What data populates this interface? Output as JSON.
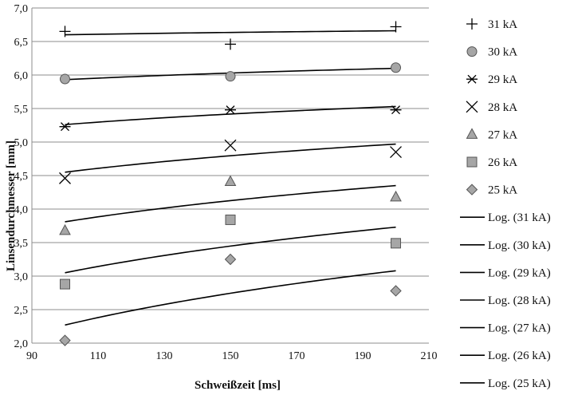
{
  "chart_data": {
    "type": "scatter",
    "xlabel": "Schweißzeit [ms]",
    "ylabel": "Linsendurchmesser [mm]",
    "xlim": [
      90,
      210
    ],
    "ylim": [
      2.0,
      7.0
    ],
    "xticks": [
      90,
      110,
      130,
      150,
      170,
      190,
      210
    ],
    "yticks": [
      2.0,
      2.5,
      3.0,
      3.5,
      4.0,
      4.5,
      5.0,
      5.5,
      6.0,
      6.5,
      7.0
    ],
    "ytick_labels": [
      "2,0",
      "2,5",
      "3,0",
      "3,5",
      "4,0",
      "4,5",
      "5,0",
      "5,5",
      "6,0",
      "6,5",
      "7,0"
    ],
    "grid": "horizontal",
    "legend_position": "right",
    "series": [
      {
        "name": "31 kA",
        "marker": "plus",
        "x": [
          100,
          150,
          200
        ],
        "y": [
          6.65,
          6.46,
          6.72
        ],
        "trend": [
          6.6,
          6.66
        ]
      },
      {
        "name": "30 kA",
        "marker": "circle",
        "x": [
          100,
          150,
          200
        ],
        "y": [
          5.94,
          5.98,
          6.11
        ],
        "trend": [
          5.93,
          6.1
        ]
      },
      {
        "name": "29 kA",
        "marker": "asterisk",
        "x": [
          100,
          150,
          200
        ],
        "y": [
          5.23,
          5.48,
          5.48
        ],
        "trend": [
          5.26,
          5.53
        ]
      },
      {
        "name": "28 kA",
        "marker": "cross",
        "x": [
          100,
          150,
          200
        ],
        "y": [
          4.46,
          4.95,
          4.85
        ],
        "trend": [
          4.55,
          4.97
        ]
      },
      {
        "name": "27 kA",
        "marker": "triangle",
        "x": [
          100,
          150,
          200
        ],
        "y": [
          3.68,
          4.41,
          4.18
        ],
        "trend": [
          3.81,
          4.35
        ]
      },
      {
        "name": "26 kA",
        "marker": "square",
        "x": [
          100,
          150,
          200
        ],
        "y": [
          2.88,
          3.84,
          3.49
        ],
        "trend": [
          3.05,
          3.73
        ]
      },
      {
        "name": "25 kA",
        "marker": "diamond",
        "x": [
          100,
          150,
          200
        ],
        "y": [
          2.04,
          3.25,
          2.78
        ],
        "trend": [
          2.27,
          3.08
        ]
      }
    ],
    "trend_legend": [
      "Log. (31 kA)",
      "Log. (30 kA)",
      "Log. (29 kA)",
      "Log. (28 kA)",
      "Log. (27 kA)",
      "Log. (26 kA)",
      "Log. (25 kA)"
    ],
    "colors": {
      "marker_fill": "#a6a6a6",
      "marker_stroke": "#555555",
      "line": "#000000",
      "grid": "#8c8c8c"
    }
  }
}
